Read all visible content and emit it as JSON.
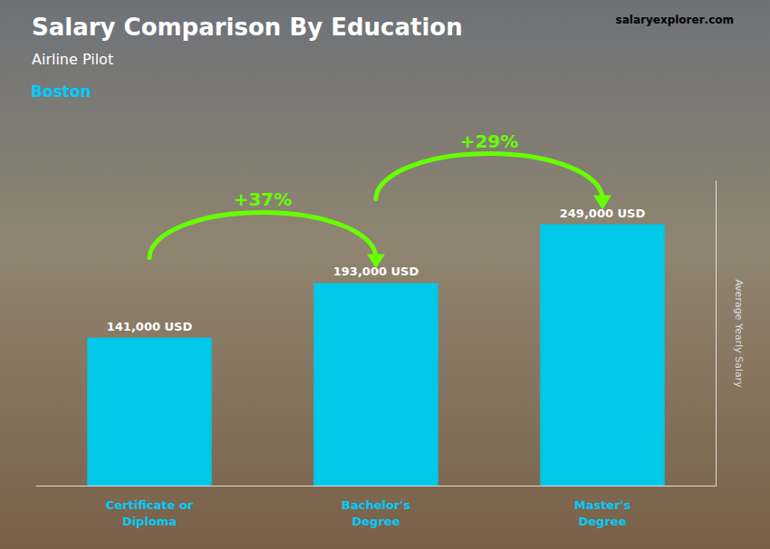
{
  "chart_data": {
    "type": "bar",
    "title": "Salary Comparison By Education",
    "subtitle": "Airline Pilot",
    "annotations": {
      "city": "Boston",
      "brand": [
        "salary",
        "explorer",
        ".com"
      ],
      "changes": [
        "+37%",
        "+29%"
      ]
    },
    "categories": [
      "Certificate or\nDiploma",
      "Bachelor's\nDegree",
      "Master's\nDegree"
    ],
    "values": [
      141000,
      193000,
      249000
    ],
    "value_labels": [
      "141,000 USD",
      "193,000 USD",
      "249,000 USD"
    ],
    "data_labels": true,
    "color": "#00c8e8",
    "ylabel": "Average Yearly Salary",
    "ylim": [
      0,
      290000
    ],
    "tick_labels": "x",
    "grid": false
  }
}
